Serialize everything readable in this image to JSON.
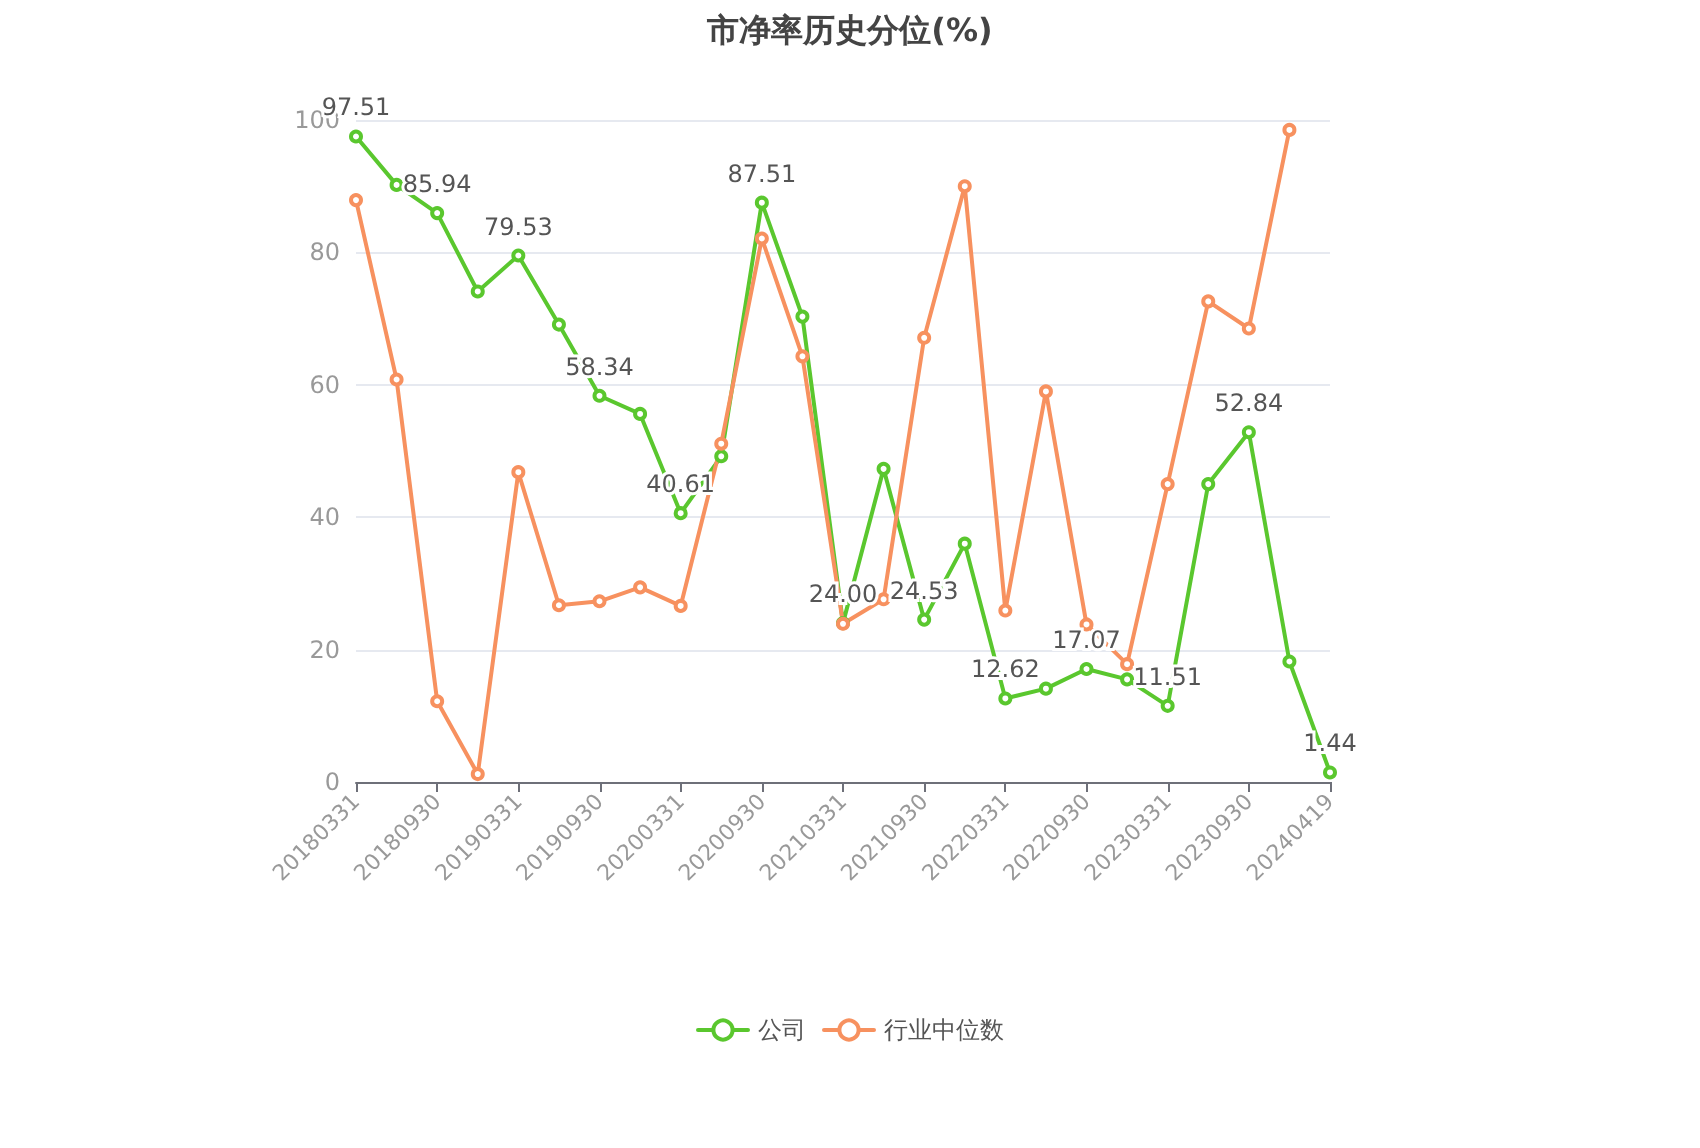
{
  "chart_data": {
    "type": "line",
    "title": "市净率历史分位(%)",
    "categories": [
      "20180331",
      null,
      "20180930",
      null,
      "20190331",
      null,
      "20190930",
      null,
      "20200331",
      null,
      "20200930",
      null,
      "20210331",
      null,
      "20210930",
      null,
      "20220331",
      null,
      "20220930",
      null,
      "20230331",
      null,
      "20230930",
      null,
      "20240419"
    ],
    "series": [
      {
        "name": "公司",
        "color": "#5ac72e",
        "values": [
          97.51,
          90.2,
          85.94,
          74.1,
          79.53,
          69.1,
          58.34,
          55.6,
          40.61,
          49.2,
          87.51,
          70.3,
          24.0,
          47.3,
          24.53,
          36.0,
          12.62,
          14.1,
          17.07,
          15.5,
          11.51,
          45.0,
          52.84,
          18.2,
          1.44
        ],
        "value_labels": [
          "97.51",
          null,
          "85.94",
          null,
          "79.53",
          null,
          "58.34",
          null,
          "40.61",
          null,
          "87.51",
          null,
          "24.00",
          null,
          "24.53",
          null,
          "12.62",
          null,
          "17.07",
          null,
          "11.51",
          null,
          "52.84",
          null,
          "1.44"
        ]
      },
      {
        "name": "行业中位数",
        "color": "#f7915f",
        "values": [
          87.9,
          60.8,
          12.2,
          1.2,
          46.8,
          26.7,
          27.3,
          29.4,
          26.6,
          51.1,
          82.1,
          64.3,
          23.9,
          27.6,
          67.1,
          90.0,
          25.9,
          59.0,
          23.8,
          17.8,
          45.0,
          72.6,
          68.5,
          98.5,
          null
        ]
      }
    ],
    "ylim": [
      0,
      100
    ],
    "yticks": [
      0,
      20,
      40,
      60,
      80,
      100
    ],
    "grid": "y",
    "legend": "bottom",
    "marker": "circle",
    "line_style": "solid"
  }
}
